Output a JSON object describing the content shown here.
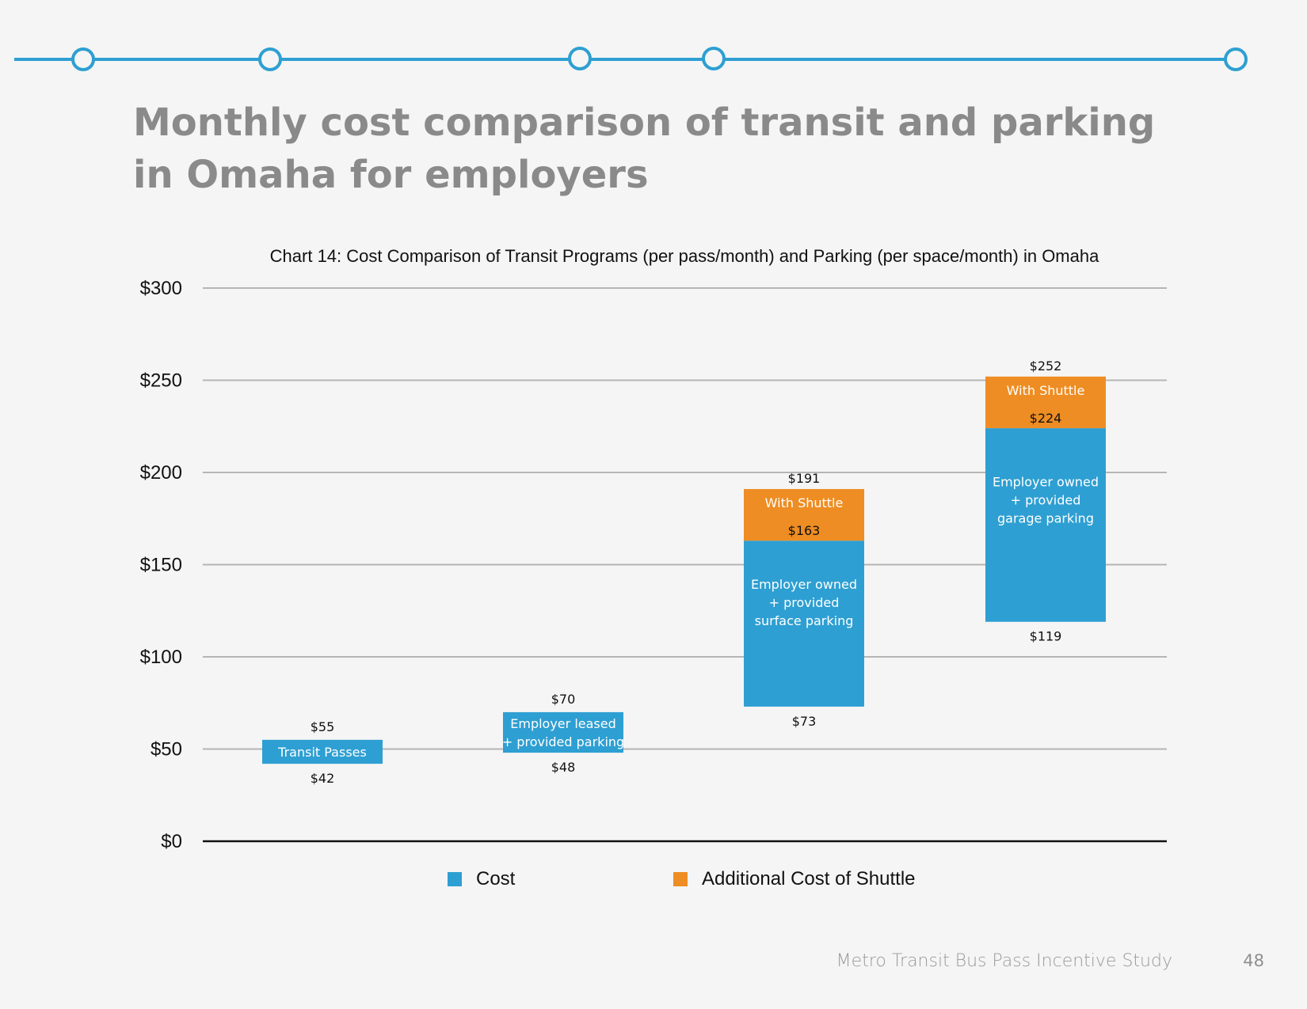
{
  "page": {
    "title": "Monthly cost comparison of transit and parking in Omaha for employers",
    "footer": "Metro Transit Bus Pass Incentive Study",
    "page_number": "48",
    "timeline_nodes": 5
  },
  "colors": {
    "accent": "#2e9fd2",
    "cost": "#2e9fd2",
    "shuttle": "#ee8d23",
    "title": "#8a8a8a",
    "grid": "#b5b5b5",
    "axis": "#111111"
  },
  "chart_data": {
    "type": "bar",
    "subtype": "floating-stacked-bar",
    "title": "Chart 14: Cost Comparison of Transit Programs (per pass/month) and Parking (per space/month) in Omaha",
    "xlabel": "",
    "ylabel": "",
    "ylim": [
      0,
      300
    ],
    "yticks": [
      0,
      50,
      100,
      150,
      200,
      250,
      300
    ],
    "ytick_labels": [
      "$0",
      "$50",
      "$100",
      "$150",
      "$200",
      "$250",
      "$300"
    ],
    "grid": true,
    "legend_position": "bottom",
    "legend": [
      {
        "name": "Cost",
        "color": "#2e9fd2"
      },
      {
        "name": "Additional Cost of Shuttle",
        "color": "#ee8d23"
      }
    ],
    "bars": [
      {
        "label": "Transit Passes",
        "low": 42,
        "high": 55,
        "low_label": "$42",
        "high_label": "$55",
        "label_lines": [
          "Transit Passes"
        ]
      },
      {
        "label": "Employer leased + provided parking",
        "low": 48,
        "high": 70,
        "low_label": "$48",
        "high_label": "$70",
        "label_lines": [
          "Employer leased",
          "+ provided parking"
        ]
      },
      {
        "label": "Employer owned + provided surface parking",
        "low": 73,
        "high": 163,
        "low_label": "$73",
        "high_label": "$163",
        "label_lines": [
          "Employer owned",
          "+ provided",
          "surface parking"
        ],
        "shuttle": {
          "high": 191,
          "high_label": "$191",
          "label": "With Shuttle"
        }
      },
      {
        "label": "Employer owned + provided garage parking",
        "low": 119,
        "high": 224,
        "low_label": "$119",
        "high_label": "$224",
        "label_lines": [
          "Employer owned",
          "+ provided",
          "garage parking"
        ],
        "shuttle": {
          "high": 252,
          "high_label": "$252",
          "label": "With Shuttle"
        }
      }
    ]
  }
}
